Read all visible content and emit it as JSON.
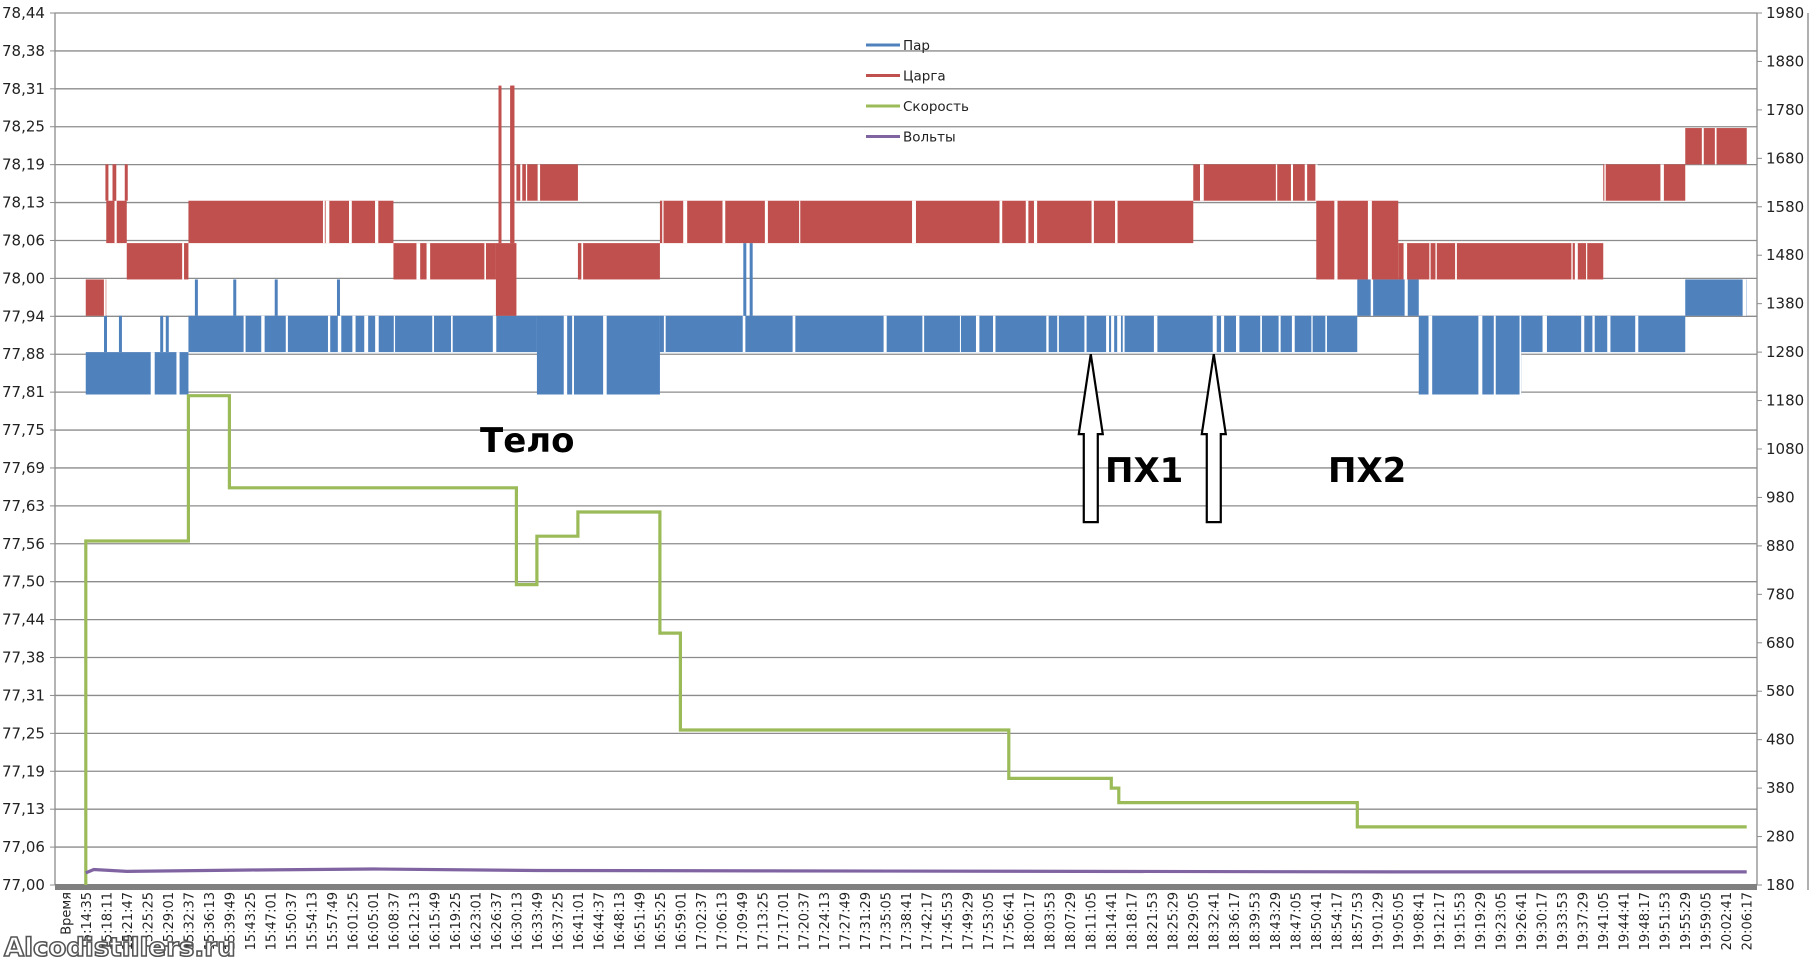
{
  "chart_data": {
    "type": "line",
    "title": "",
    "xlabel": "Время",
    "ylabel_left": "",
    "ylabel_right": "",
    "grid": true,
    "legend_position": "top-center",
    "y_left": {
      "range": [
        77.0,
        78.44
      ],
      "ticks": [
        "78,44",
        "78,38",
        "78,31",
        "78,25",
        "78,19",
        "78,13",
        "78,06",
        "78,00",
        "77,94",
        "77,88",
        "77,81",
        "77,75",
        "77,69",
        "77,63",
        "77,56",
        "77,50",
        "77,44",
        "77,38",
        "77,31",
        "77,25",
        "77,19",
        "77,13",
        "77,06",
        "77,00"
      ]
    },
    "y_right": {
      "range": [
        180,
        1980
      ],
      "ticks": [
        "1980",
        "1880",
        "1780",
        "1680",
        "1580",
        "1480",
        "1380",
        "1280",
        "1180",
        "1080",
        "980",
        "880",
        "780",
        "680",
        "580",
        "480",
        "380",
        "280",
        "180"
      ]
    },
    "x_ticks": [
      "Время",
      "15:14:35",
      "15:18:11",
      "15:21:47",
      "15:25:25",
      "15:29:01",
      "15:32:37",
      "15:36:13",
      "15:39:49",
      "15:43:25",
      "15:47:01",
      "15:50:37",
      "15:54:13",
      "15:57:49",
      "16:01:25",
      "16:05:01",
      "16:08:37",
      "16:12:13",
      "16:15:49",
      "16:19:25",
      "16:23:01",
      "16:26:37",
      "16:30:13",
      "16:33:49",
      "16:37:25",
      "16:41:01",
      "16:44:37",
      "16:48:13",
      "16:51:49",
      "16:55:25",
      "16:59:01",
      "17:02:37",
      "17:06:13",
      "17:09:49",
      "17:13:25",
      "17:17:01",
      "17:20:37",
      "17:24:13",
      "17:27:49",
      "17:31:29",
      "17:35:05",
      "17:38:41",
      "17:42:17",
      "17:45:53",
      "17:49:29",
      "17:53:05",
      "17:56:41",
      "18:00:17",
      "18:03:53",
      "18:07:29",
      "18:11:05",
      "18:14:41",
      "18:18:17",
      "18:21:53",
      "18:25:29",
      "18:29:05",
      "18:32:41",
      "18:36:17",
      "18:39:53",
      "18:43:29",
      "18:47:05",
      "18:50:41",
      "18:54:17",
      "18:57:53",
      "19:01:29",
      "19:05:05",
      "19:08:41",
      "19:12:17",
      "19:15:53",
      "19:19:29",
      "19:23:05",
      "19:26:41",
      "19:30:17",
      "19:33:53",
      "19:37:29",
      "19:41:05",
      "19:44:41",
      "19:48:17",
      "19:51:53",
      "19:55:29",
      "19:59:05",
      "20:02:41",
      "20:06:17"
    ],
    "series": [
      {
        "name": "Пар",
        "axis": "left",
        "color": "#4f81bd",
        "style": "oscillating band",
        "segments": [
          {
            "from": "15:14:35",
            "to": "15:32:37",
            "low": 77.81,
            "high": 77.88,
            "spikes_to": 77.94
          },
          {
            "from": "15:32:37",
            "to": "16:33:49",
            "low": 77.88,
            "high": 77.94,
            "spikes_to": 78.0
          },
          {
            "from": "16:33:49",
            "to": "16:55:25",
            "low": 77.81,
            "high": 77.94
          },
          {
            "from": "16:55:25",
            "to": "18:57:53",
            "low": 77.88,
            "high": 77.94,
            "spikes_to": 78.06
          },
          {
            "from": "18:57:53",
            "to": "19:08:41",
            "low": 77.94,
            "high": 78.0
          },
          {
            "from": "19:08:41",
            "to": "19:26:41",
            "low": 77.81,
            "high": 77.94
          },
          {
            "from": "19:26:41",
            "to": "19:55:29",
            "low": 77.88,
            "high": 77.94
          },
          {
            "from": "19:55:29",
            "to": "20:06:17",
            "low": 77.94,
            "high": 78.0
          }
        ]
      },
      {
        "name": "Царга",
        "axis": "left",
        "color": "#c0504d",
        "style": "oscillating band",
        "segments": [
          {
            "from": "15:14:35",
            "to": "15:18:11",
            "low": 77.94,
            "high": 78.0
          },
          {
            "from": "15:18:11",
            "to": "15:21:47",
            "low": 78.06,
            "high": 78.13,
            "spikes_to": 78.19
          },
          {
            "from": "15:21:47",
            "to": "15:32:37",
            "low": 78.0,
            "high": 78.06
          },
          {
            "from": "15:32:37",
            "to": "16:08:37",
            "low": 78.06,
            "high": 78.13
          },
          {
            "from": "16:08:37",
            "to": "16:26:37",
            "low": 78.0,
            "high": 78.06
          },
          {
            "from": "16:26:37",
            "to": "16:30:13",
            "low": 77.94,
            "high": 78.06,
            "spikes_to": 78.32
          },
          {
            "from": "16:30:13",
            "to": "16:41:01",
            "low": 78.13,
            "high": 78.19
          },
          {
            "from": "16:41:01",
            "to": "16:55:25",
            "low": 78.0,
            "high": 78.06
          },
          {
            "from": "16:55:25",
            "to": "18:29:05",
            "low": 78.06,
            "high": 78.13
          },
          {
            "from": "18:29:05",
            "to": "18:50:41",
            "low": 78.13,
            "high": 78.19
          },
          {
            "from": "18:50:41",
            "to": "19:05:05",
            "low": 78.0,
            "high": 78.13
          },
          {
            "from": "19:05:05",
            "to": "19:41:05",
            "low": 78.0,
            "high": 78.06
          },
          {
            "from": "19:41:05",
            "to": "19:55:29",
            "low": 78.13,
            "high": 78.19
          },
          {
            "from": "19:55:29",
            "to": "20:06:17",
            "low": 78.19,
            "high": 78.25
          }
        ]
      },
      {
        "name": "Скорость",
        "axis": "right",
        "color": "#9bbb59",
        "style": "step",
        "points": [
          {
            "t": "15:14:35",
            "v": 180
          },
          {
            "t": "15:14:35",
            "v": 890
          },
          {
            "t": "15:32:37",
            "v": 890
          },
          {
            "t": "15:32:37",
            "v": 1190
          },
          {
            "t": "15:39:49",
            "v": 1190
          },
          {
            "t": "15:39:49",
            "v": 1000
          },
          {
            "t": "16:30:13",
            "v": 1000
          },
          {
            "t": "16:30:13",
            "v": 800
          },
          {
            "t": "16:33:49",
            "v": 800
          },
          {
            "t": "16:33:49",
            "v": 900
          },
          {
            "t": "16:41:01",
            "v": 900
          },
          {
            "t": "16:41:01",
            "v": 950
          },
          {
            "t": "16:55:25",
            "v": 950
          },
          {
            "t": "16:55:25",
            "v": 700
          },
          {
            "t": "16:59:01",
            "v": 700
          },
          {
            "t": "16:59:01",
            "v": 500
          },
          {
            "t": "17:56:41",
            "v": 500
          },
          {
            "t": "17:56:41",
            "v": 400
          },
          {
            "t": "18:14:41",
            "v": 400
          },
          {
            "t": "18:14:41",
            "v": 380
          },
          {
            "t": "18:16:00",
            "v": 380
          },
          {
            "t": "18:16:00",
            "v": 350
          },
          {
            "t": "18:57:53",
            "v": 350
          },
          {
            "t": "18:57:53",
            "v": 300
          },
          {
            "t": "20:06:17",
            "v": 300
          }
        ]
      },
      {
        "name": "Вольты",
        "axis": "right",
        "color": "#8064a2",
        "style": "line",
        "points": [
          {
            "t": "15:14:35",
            "v": 205
          },
          {
            "t": "15:16:00",
            "v": 212
          },
          {
            "t": "15:21:47",
            "v": 208
          },
          {
            "t": "15:43:25",
            "v": 211
          },
          {
            "t": "16:05:01",
            "v": 213
          },
          {
            "t": "16:33:49",
            "v": 210
          },
          {
            "t": "19:08:41",
            "v": 207
          },
          {
            "t": "20:06:17",
            "v": 207
          }
        ]
      }
    ],
    "annotations": [
      {
        "text": "Тело",
        "at": "16:30:13",
        "value_right": 1110
      },
      {
        "text": "ПХ1",
        "at": "18:16:00",
        "value_right": 1010
      },
      {
        "text": "ПХ2",
        "at": "19:01:29",
        "value_right": 1010
      },
      {
        "type": "arrow-up",
        "at": "18:11:05",
        "points_to": 77.88,
        "label": ""
      },
      {
        "type": "arrow-up",
        "at": "18:32:41",
        "points_to": 77.88,
        "label": ""
      }
    ]
  },
  "watermark": "Alcodistillers.ru"
}
